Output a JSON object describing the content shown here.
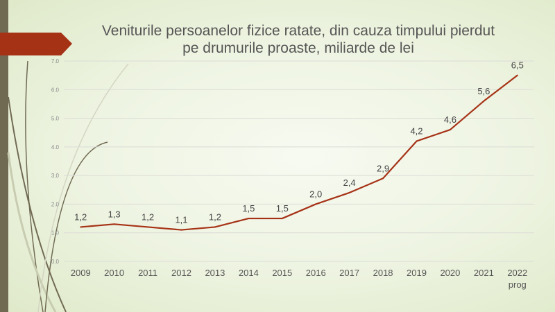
{
  "chart_data": {
    "type": "line",
    "title": "Veniturile persoanelor fizice ratate, din cauza timpului pierdut pe drumurile proaste, miliarde de lei",
    "categories": [
      "2009",
      "2010",
      "2011",
      "2012",
      "2013",
      "2014",
      "2015",
      "2016",
      "2017",
      "2018",
      "2019",
      "2020",
      "2021",
      "2022 prog"
    ],
    "values": [
      1.2,
      1.3,
      1.2,
      1.1,
      1.2,
      1.5,
      1.5,
      2.0,
      2.4,
      2.9,
      4.2,
      4.6,
      5.6,
      6.5
    ],
    "data_labels": [
      "1,2",
      "1,3",
      "1,2",
      "1,1",
      "1,2",
      "1,5",
      "1,5",
      "2,0",
      "2,4",
      "2,9",
      "4,2",
      "4,6",
      "5,6",
      "6,5"
    ],
    "yticks": [
      "0.0",
      "1.0",
      "2.0",
      "3.0",
      "4.0",
      "5.0",
      "6.0",
      "7.0"
    ],
    "ylim": [
      0,
      7
    ],
    "xlabel": "",
    "ylabel": "",
    "grid": true,
    "line_color": "#a63216"
  }
}
